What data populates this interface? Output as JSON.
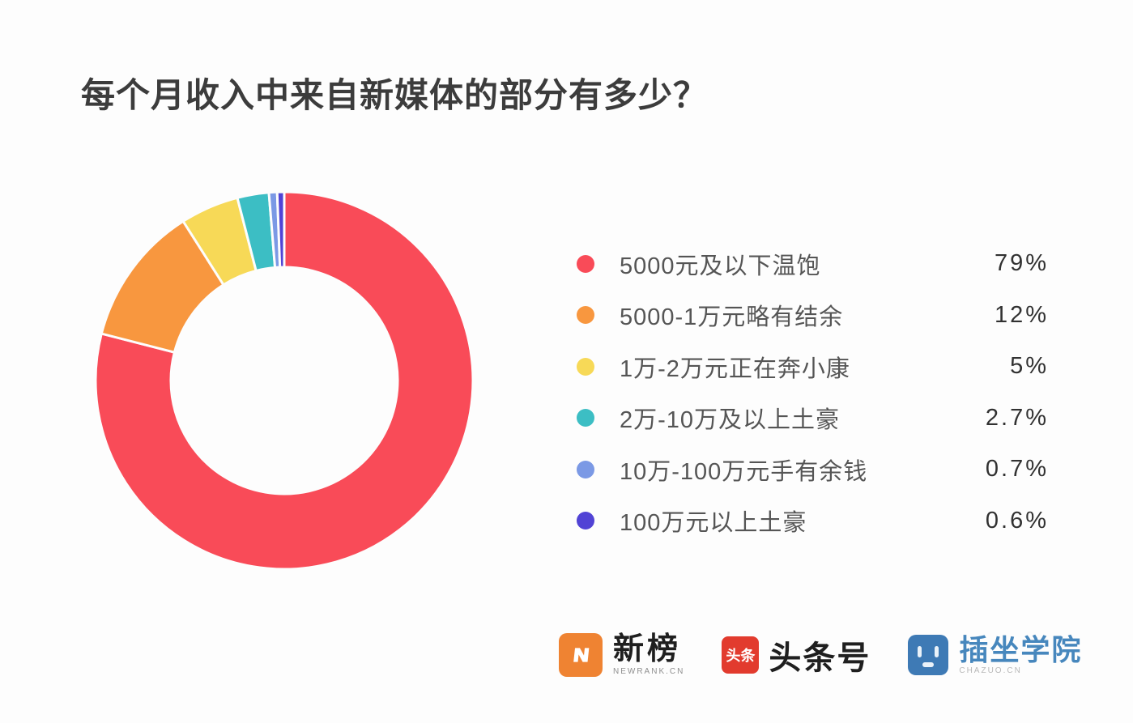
{
  "title": "每个月收入中来自新媒体的部分有多少？",
  "colors": {
    "background": "#FDFDFD",
    "title_text": "#3C3C3C",
    "legend_label": "#555555",
    "legend_value": "#313131"
  },
  "chart_data": {
    "type": "pie",
    "donut": true,
    "start_angle_deg": 0,
    "direction": "clockwise",
    "legend_position": "right",
    "title": "每个月收入中来自新媒体的部分有多少？",
    "series": [
      {
        "label": "5000元及以下温饱",
        "value": 79,
        "display": "79%",
        "color": "#F94B58"
      },
      {
        "label": "5000-1万元略有结余",
        "value": 12,
        "display": "12%",
        "color": "#F8973F"
      },
      {
        "label": "1万-2万元正在奔小康",
        "value": 5,
        "display": "5%",
        "color": "#F7D957"
      },
      {
        "label": "2万-10万及以上土豪",
        "value": 2.7,
        "display": "2.7%",
        "color": "#3CBEC4"
      },
      {
        "label": "10万-100万元手有余钱",
        "value": 0.7,
        "display": "0.7%",
        "color": "#7B99E5"
      },
      {
        "label": "100万元以上土豪",
        "value": 0.6,
        "display": "0.6%",
        "color": "#5143D5"
      }
    ]
  },
  "footer": {
    "logos": [
      {
        "id": "newrank",
        "name": "新榜",
        "caption": "NEWRANK.CN",
        "icon": "newrank-lightning-n-icon",
        "icon_bg": "#EF8332",
        "name_color": "#1F1F1F"
      },
      {
        "id": "toutiao",
        "name": "头条号",
        "icon_text": "头条",
        "icon": "toutiao-icon",
        "icon_bg": "#E23B2E",
        "name_color": "#1F1F1F"
      },
      {
        "id": "chazuo",
        "name": "插坐学院",
        "caption": "CHAZUO.CN",
        "icon": "chazuo-robot-face-icon",
        "icon_bg": "#3E7AB5",
        "name_color": "#4787BD"
      }
    ]
  }
}
